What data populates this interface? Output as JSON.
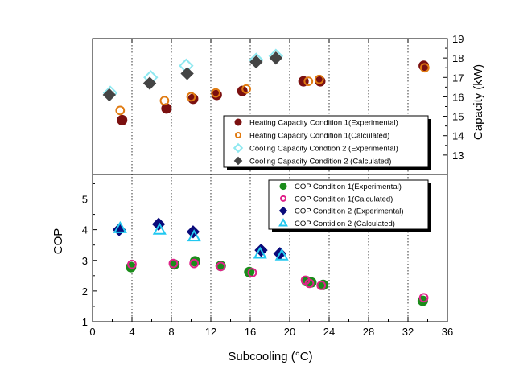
{
  "chart_data": [
    {
      "type": "scatter",
      "panel": "top",
      "ylabel": "Capacity (kW)",
      "yaxis_side": "right",
      "ylim": [
        12,
        19
      ],
      "yticks": [
        "13",
        "14",
        "15",
        "16",
        "17",
        "18",
        "19"
      ],
      "xlim": [
        0,
        36
      ],
      "legend_position": "bottom-right",
      "series": [
        {
          "name": "Heating Capacity Condition 1(Experimental)",
          "marker": "circle",
          "color": "#7b1010",
          "stroke": "#7b1010",
          "x": [
            3.0,
            7.5,
            10.2,
            12.6,
            15.2,
            21.4,
            23.1,
            33.6
          ],
          "y": [
            14.8,
            15.4,
            15.9,
            16.1,
            16.3,
            16.8,
            16.8,
            17.6
          ]
        },
        {
          "name": "Heating Capacity Condition 1(Calculated)",
          "marker": "open-circle",
          "color": "none",
          "stroke": "#e07a10",
          "x": [
            2.8,
            7.3,
            10.0,
            12.5,
            15.6,
            21.9,
            23.0,
            33.7
          ],
          "y": [
            15.3,
            15.8,
            16.0,
            16.2,
            16.4,
            16.8,
            16.9,
            17.5
          ]
        },
        {
          "name": "Cooling Capacity Condtion 2 (Experimental)",
          "marker": "open-diamond",
          "color": "none",
          "stroke": "#8ee8f0",
          "x": [
            1.8,
            5.9,
            9.5,
            16.6,
            18.6
          ],
          "y": [
            16.2,
            17.0,
            17.6,
            17.9,
            18.1
          ]
        },
        {
          "name": "Cooling Capacity Condition 2 (Calculated)",
          "marker": "diamond",
          "color": "#444444",
          "stroke": "#444444",
          "x": [
            1.7,
            5.8,
            9.6,
            16.6,
            18.6
          ],
          "y": [
            16.1,
            16.7,
            17.2,
            17.8,
            18.0
          ]
        }
      ]
    },
    {
      "type": "scatter",
      "panel": "bottom",
      "ylabel": "COP",
      "yaxis_side": "left",
      "ylim": [
        1,
        5.8
      ],
      "yticks": [
        "1",
        "2",
        "3",
        "4",
        "5"
      ],
      "xlabel": "Subcooling (°C)",
      "xlim": [
        0,
        36
      ],
      "xticks": [
        "0",
        "4",
        "8",
        "12",
        "16",
        "20",
        "24",
        "28",
        "32",
        "36"
      ],
      "legend_position": "top-right",
      "series": [
        {
          "name": "COP Condition 1(Experimental)",
          "marker": "circle",
          "color": "#1a8c1a",
          "stroke": "#1a8c1a",
          "x": [
            3.9,
            8.3,
            10.4,
            13.0,
            15.9,
            21.7,
            22.2,
            23.4,
            33.5
          ],
          "y": [
            2.78,
            2.87,
            2.97,
            2.82,
            2.62,
            2.32,
            2.28,
            2.2,
            1.68
          ]
        },
        {
          "name": "COP Condition 1(Calculated)",
          "marker": "open-circle",
          "color": "none",
          "stroke": "#e0228a",
          "x": [
            4.0,
            8.2,
            10.3,
            13.0,
            16.2,
            21.6,
            22.0,
            23.2,
            33.6
          ],
          "y": [
            2.87,
            2.9,
            2.9,
            2.8,
            2.6,
            2.35,
            2.25,
            2.18,
            1.78
          ]
        },
        {
          "name": "COP Condition 2 (Experimental)",
          "marker": "diamond",
          "color": "#0a0a7a",
          "stroke": "#0a0a7a",
          "x": [
            2.7,
            6.7,
            10.2,
            17.1,
            19.0
          ],
          "y": [
            4.0,
            4.18,
            3.93,
            3.33,
            3.22
          ]
        },
        {
          "name": "COP Contidion 2 (Calculated)",
          "marker": "open-triangle",
          "color": "none",
          "stroke": "#22c8f0",
          "x": [
            2.8,
            6.8,
            10.3,
            17.0,
            19.2
          ],
          "y": [
            4.05,
            4.0,
            3.78,
            3.22,
            3.16
          ]
        }
      ]
    }
  ]
}
